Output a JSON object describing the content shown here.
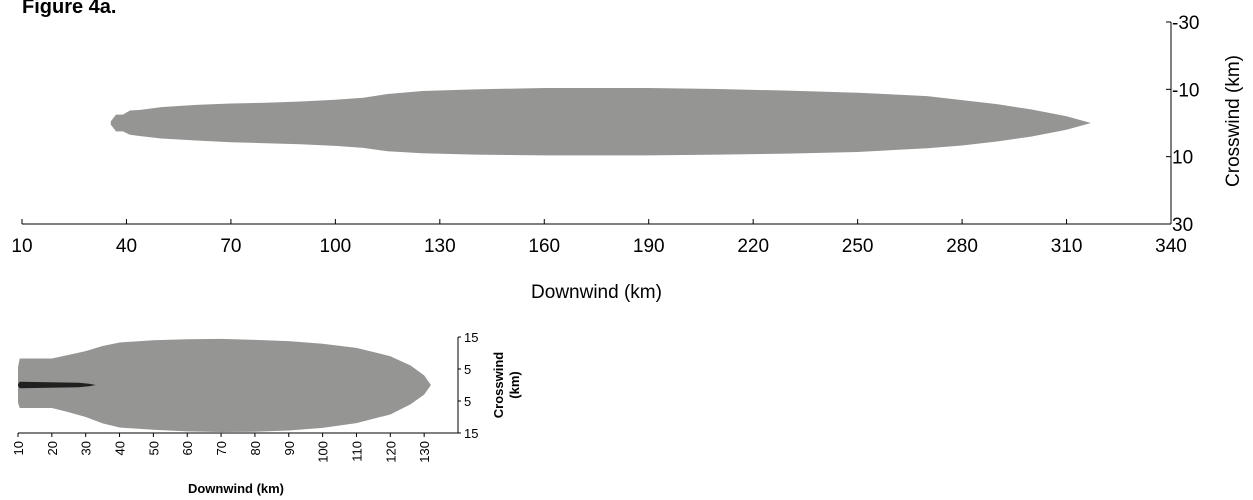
{
  "figure_title": "Figure 4a.",
  "colors": {
    "plume": "#959593",
    "inner_plume": "#202020",
    "axis": "#000000",
    "background": "#ffffff"
  },
  "chart_data": [
    {
      "type": "area",
      "title": "",
      "xlabel": "Downwind (km)",
      "ylabel": "Crosswind (km)",
      "xlim": [
        10,
        340
      ],
      "ylim": [
        -30,
        30
      ],
      "x_ticks": [
        "10",
        "40",
        "70",
        "100",
        "130",
        "160",
        "190",
        "220",
        "250",
        "280",
        "310",
        "340"
      ],
      "y_ticks": [
        "-30",
        "-10",
        "10",
        "30"
      ],
      "grid": false,
      "series": [
        {
          "color": "#959593",
          "upper": [
            [
              35.5,
              -0.5
            ],
            [
              37,
              -2.5
            ],
            [
              39,
              -2.5
            ],
            [
              41,
              -3.7
            ],
            [
              44,
              -3.9
            ],
            [
              50,
              -4.7
            ],
            [
              60,
              -5.4
            ],
            [
              70,
              -5.8
            ],
            [
              80,
              -6.0
            ],
            [
              90,
              -6.4
            ],
            [
              100,
              -6.9
            ],
            [
              108,
              -7.5
            ],
            [
              115,
              -8.6
            ],
            [
              125,
              -9.5
            ],
            [
              140,
              -10.0
            ],
            [
              160,
              -10.4
            ],
            [
              190,
              -10.4
            ],
            [
              210,
              -10.1
            ],
            [
              230,
              -9.6
            ],
            [
              250,
              -9.0
            ],
            [
              270,
              -8.0
            ],
            [
              280,
              -6.8
            ],
            [
              290,
              -5.6
            ],
            [
              300,
              -4.0
            ],
            [
              310,
              -2.0
            ],
            [
              317,
              0
            ]
          ],
          "lower": [
            [
              35.5,
              0.5
            ],
            [
              37,
              2.5
            ],
            [
              39,
              2.5
            ],
            [
              41,
              3.5
            ],
            [
              44,
              3.9
            ],
            [
              50,
              4.6
            ],
            [
              60,
              5.2
            ],
            [
              70,
              5.7
            ],
            [
              80,
              6.0
            ],
            [
              90,
              6.3
            ],
            [
              100,
              6.8
            ],
            [
              108,
              7.4
            ],
            [
              115,
              8.4
            ],
            [
              125,
              9.0
            ],
            [
              140,
              9.4
            ],
            [
              160,
              9.6
            ],
            [
              190,
              9.6
            ],
            [
              210,
              9.4
            ],
            [
              230,
              9.1
            ],
            [
              250,
              8.6
            ],
            [
              270,
              7.5
            ],
            [
              280,
              6.7
            ],
            [
              290,
              5.5
            ],
            [
              300,
              4.0
            ],
            [
              310,
              2.0
            ],
            [
              317,
              0
            ]
          ]
        }
      ]
    },
    {
      "type": "area",
      "title": "",
      "xlabel": "Downwind (km)",
      "ylabel": "Crosswind\n(km)",
      "xlim": [
        10,
        140
      ],
      "ylim": [
        -15,
        15
      ],
      "x_ticks": [
        "10",
        "20",
        "30",
        "40",
        "50",
        "60",
        "70",
        "80",
        "90",
        "100",
        "110",
        "120",
        "130"
      ],
      "y_ticks": [
        "15",
        "5",
        "5",
        "15"
      ],
      "grid": false,
      "series": [
        {
          "color": "#959593",
          "upper": [
            [
              10,
              -5.5
            ],
            [
              10.5,
              -8.3
            ],
            [
              15,
              -8.3
            ],
            [
              20,
              -8.3
            ],
            [
              25,
              -9.4
            ],
            [
              30,
              -10.6
            ],
            [
              35,
              -12.2
            ],
            [
              40,
              -13.3
            ],
            [
              50,
              -14.0
            ],
            [
              60,
              -14.3
            ],
            [
              70,
              -14.4
            ],
            [
              80,
              -14.1
            ],
            [
              90,
              -13.7
            ],
            [
              100,
              -12.9
            ],
            [
              110,
              -11.6
            ],
            [
              120,
              -9.0
            ],
            [
              126,
              -6.1
            ],
            [
              130,
              -3.0
            ],
            [
              132,
              0
            ]
          ],
          "lower": [
            [
              10,
              5.5
            ],
            [
              10.5,
              7.2
            ],
            [
              15,
              7.2
            ],
            [
              20,
              7.2
            ],
            [
              25,
              8.5
            ],
            [
              30,
              10.0
            ],
            [
              35,
              12.0
            ],
            [
              40,
              13.3
            ],
            [
              50,
              14.0
            ],
            [
              60,
              14.5
            ],
            [
              70,
              14.7
            ],
            [
              80,
              14.6
            ],
            [
              90,
              14.2
            ],
            [
              100,
              13.4
            ],
            [
              110,
              11.9
            ],
            [
              120,
              9.2
            ],
            [
              126,
              6.0
            ],
            [
              130,
              3.0
            ],
            [
              132,
              0
            ]
          ]
        },
        {
          "color": "#202020",
          "upper": [
            [
              10,
              -0.2
            ],
            [
              10.5,
              -1.0
            ],
            [
              28,
              -0.7
            ],
            [
              31,
              -0.4
            ],
            [
              33,
              0
            ]
          ],
          "lower": [
            [
              10,
              0.2
            ],
            [
              10.5,
              1.0
            ],
            [
              28,
              0.7
            ],
            [
              31,
              0.4
            ],
            [
              33,
              0
            ]
          ]
        }
      ]
    }
  ]
}
